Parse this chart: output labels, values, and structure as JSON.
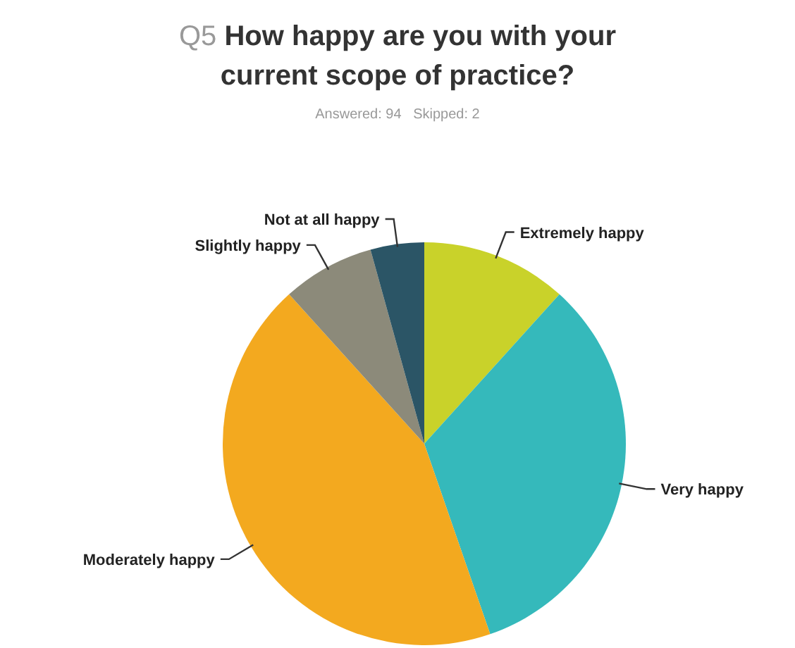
{
  "chart_data": {
    "type": "pie",
    "title": "Q5 How happy are you with your current scope of practice?",
    "subtitle": "Answered: 94   Skipped: 2",
    "categories": [
      "Extremely happy",
      "Very happy",
      "Moderately happy",
      "Slightly happy",
      "Not at all happy"
    ],
    "values": [
      11.7,
      33.0,
      43.6,
      7.4,
      4.3
    ],
    "colors": [
      "#c9d22a",
      "#35b9bb",
      "#f3a91f",
      "#8c8a7a",
      "#2b5566"
    ],
    "legend": false
  }
}
